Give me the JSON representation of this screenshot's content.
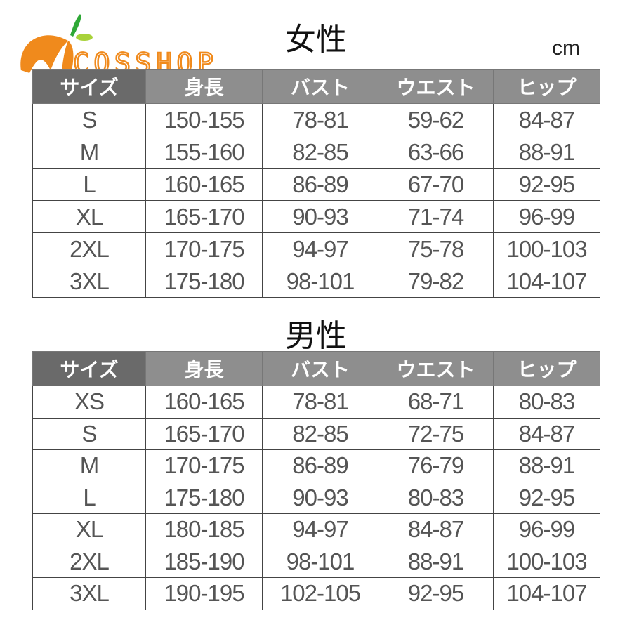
{
  "logo": {
    "text": "COSSHOP",
    "colors": {
      "orange": "#f08a1c",
      "green": "#2ea836",
      "lime": "#a8d23a"
    }
  },
  "unit": "cm",
  "women": {
    "title": "女性",
    "headers": [
      "サイズ",
      "身長",
      "バスト",
      "ウエスト",
      "ヒップ"
    ],
    "rows": [
      [
        "S",
        "150-155",
        "78-81",
        "59-62",
        "84-87"
      ],
      [
        "M",
        "155-160",
        "82-85",
        "63-66",
        "88-91"
      ],
      [
        "L",
        "160-165",
        "86-89",
        "67-70",
        "92-95"
      ],
      [
        "XL",
        "165-170",
        "90-93",
        "71-74",
        "96-99"
      ],
      [
        "2XL",
        "170-175",
        "94-97",
        "75-78",
        "100-103"
      ],
      [
        "3XL",
        "175-180",
        "98-101",
        "79-82",
        "104-107"
      ]
    ]
  },
  "men": {
    "title": "男性",
    "headers": [
      "サイズ",
      "身長",
      "バスト",
      "ウエスト",
      "ヒップ"
    ],
    "rows": [
      [
        "XS",
        "160-165",
        "78-81",
        "68-71",
        "80-83"
      ],
      [
        "S",
        "165-170",
        "82-85",
        "72-75",
        "84-87"
      ],
      [
        "M",
        "170-175",
        "86-89",
        "76-79",
        "88-91"
      ],
      [
        "L",
        "175-180",
        "90-93",
        "80-83",
        "92-95"
      ],
      [
        "XL",
        "180-185",
        "94-97",
        "84-87",
        "96-99"
      ],
      [
        "2XL",
        "185-190",
        "98-101",
        "88-91",
        "100-103"
      ],
      [
        "3XL",
        "190-195",
        "102-105",
        "92-95",
        "104-107"
      ]
    ]
  }
}
